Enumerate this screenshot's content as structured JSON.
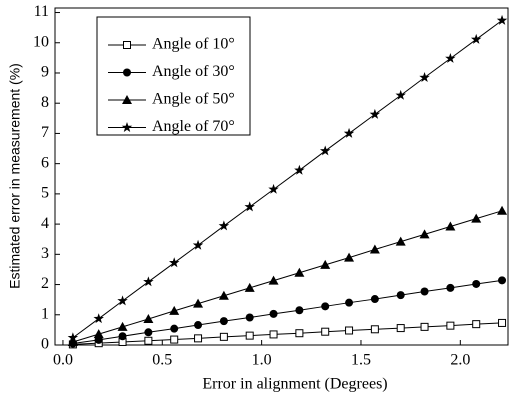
{
  "chart_data": {
    "type": "line",
    "x_label": "Error in alignment (Degrees)",
    "y_label": "Estimated error in measurement (%)",
    "x": [
      0.05,
      0.18,
      0.3,
      0.43,
      0.56,
      0.68,
      0.81,
      0.94,
      1.06,
      1.19,
      1.32,
      1.44,
      1.57,
      1.7,
      1.82,
      1.95,
      2.08,
      2.21
    ],
    "series": [
      {
        "name": "Angle of 10°",
        "color": "#000000",
        "marker": "open-square",
        "values": [
          0.02,
          0.06,
          0.1,
          0.14,
          0.18,
          0.22,
          0.27,
          0.31,
          0.35,
          0.39,
          0.44,
          0.48,
          0.52,
          0.56,
          0.6,
          0.64,
          0.69,
          0.73
        ]
      },
      {
        "name": "Angle of 30°",
        "color": "#000000",
        "marker": "circle",
        "values": [
          0.05,
          0.17,
          0.29,
          0.42,
          0.54,
          0.66,
          0.79,
          0.91,
          1.03,
          1.15,
          1.28,
          1.4,
          1.52,
          1.65,
          1.77,
          1.89,
          2.02,
          2.14
        ]
      },
      {
        "name": "Angle of 50°",
        "color": "#000000",
        "marker": "triangle",
        "values": [
          0.1,
          0.36,
          0.6,
          0.86,
          1.13,
          1.37,
          1.63,
          1.89,
          2.13,
          2.39,
          2.65,
          2.89,
          3.16,
          3.42,
          3.66,
          3.92,
          4.18,
          4.44
        ]
      },
      {
        "name": "Angle of 70°",
        "color": "#000000",
        "marker": "star",
        "values": [
          0.24,
          0.87,
          1.46,
          2.09,
          2.72,
          3.3,
          3.94,
          4.57,
          5.15,
          5.78,
          6.42,
          7.0,
          7.63,
          8.26,
          8.85,
          9.48,
          10.11,
          10.74
        ]
      }
    ],
    "xlim": [
      -0.04,
      2.24
    ],
    "ylim": [
      0,
      11.15
    ],
    "xticks": [
      {
        "value": 0,
        "label": "0.0"
      },
      {
        "value": 0.5,
        "label": "0.5"
      },
      {
        "value": 1,
        "label": "1.0"
      },
      {
        "value": 1.5,
        "label": "1.5"
      },
      {
        "value": 2,
        "label": "2.0"
      }
    ],
    "yticks": [
      0,
      1,
      2,
      3,
      4,
      5,
      6,
      7,
      8,
      9,
      10,
      11
    ],
    "legend": "upper-left",
    "grid": false
  }
}
